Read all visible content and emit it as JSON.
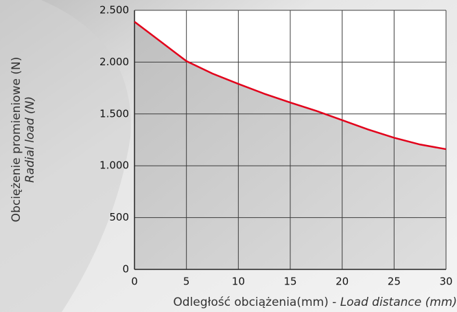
{
  "chart_data": {
    "type": "area",
    "ylabel": "Obciężenie promieniowe (N)",
    "ylabel_en": "Radial load (N)",
    "xlabel": "Odległość obciążenia(mm) -",
    "xlabel_en": "Load distance (mm)",
    "x": [
      0,
      2.5,
      5,
      7.5,
      10,
      12.5,
      15,
      17.5,
      20,
      22.5,
      25,
      27.5,
      30
    ],
    "values": [
      2390,
      2200,
      2010,
      1890,
      1790,
      1695,
      1610,
      1530,
      1440,
      1350,
      1270,
      1205,
      1160
    ],
    "color": "#e2001a",
    "xlim": [
      0,
      30
    ],
    "xticks": [
      0,
      5,
      10,
      15,
      20,
      25,
      30
    ],
    "ylim": [
      0,
      2500
    ],
    "yticks": [
      0,
      500,
      {
        "value": 1000,
        "label": "1.000"
      },
      {
        "value": 1500,
        "label": "1.500"
      },
      {
        "value": 2000,
        "label": "2.000"
      },
      {
        "value": 2500,
        "label": "2.500"
      }
    ],
    "grid": true
  }
}
